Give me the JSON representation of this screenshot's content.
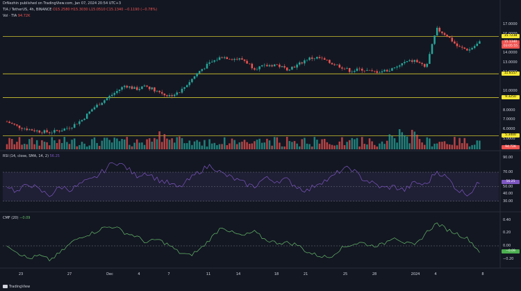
{
  "header": {
    "publisher": "DrNezhin published on TradingView.com, Jan 07, 2024 20:54 UTC+3",
    "symbol": "TIA / TetherUS, 4h, BINANCE",
    "ohlc": "O15.2580 H15.3030 L15.0510 C15.1340 −0.1190 (−0.78%)",
    "volume_label": "Vol · TIA",
    "volume_value": "94.72K",
    "rsi_label": "RSI (14, close, SMA, 14, 2)",
    "rsi_value": "56.25",
    "cmf_label": "CMF (20)",
    "cmf_value": "−0.09"
  },
  "price_axis": {
    "ticks": [
      "17.0000",
      "16.0000",
      "14.0000",
      "13.0000",
      "12.0000",
      "10.0000",
      "8.0000",
      "7.0000",
      "6.0000",
      "5.0000"
    ],
    "tags": [
      {
        "text": "15.7238",
        "bg": "#f5e733",
        "fg": "#000000"
      },
      {
        "text": "15.1340",
        "bg": "#ef5350",
        "fg": "#ffffff"
      },
      {
        "text": "03:05:55",
        "bg": "#ef5350",
        "fg": "#ffffff"
      },
      {
        "text": "11.8157",
        "bg": "#f5e733",
        "fg": "#000000"
      },
      {
        "text": "9.3250",
        "bg": "#f5e733",
        "fg": "#000000"
      },
      {
        "text": "5.3400",
        "bg": "#f5e733",
        "fg": "#000000"
      },
      {
        "text": "94.72K",
        "bg": "#ef5350",
        "fg": "#ffffff"
      }
    ]
  },
  "rsi_axis": {
    "ticks": [
      "90.00",
      "70.00",
      "50.00",
      "40.00",
      "30.00"
    ],
    "value_tag": "56.25"
  },
  "cmf_axis": {
    "ticks": [
      "0.40",
      "0.20",
      "0.00",
      "−0.20"
    ],
    "value_tag": "−0.09"
  },
  "time_axis": [
    "23",
    "27",
    "Dec",
    "4",
    "7",
    "11",
    "14",
    "18",
    "21",
    "25",
    "28",
    "2024",
    "4",
    "8"
  ],
  "footer": {
    "brand": "TradingView"
  },
  "colors": {
    "bull": "#26a69a",
    "bear": "#ef5350",
    "rsi": "#7e57c2",
    "cmf": "#66bb6a",
    "level": "#f5e733"
  },
  "chart_data": [
    {
      "type": "candlestick",
      "title": "TIA / TetherUS, 4h, BINANCE",
      "x_ticks": [
        "23",
        "27",
        "Dec",
        "4",
        "7",
        "11",
        "14",
        "18",
        "21",
        "25",
        "28",
        "2024",
        "4",
        "8"
      ],
      "ylim": [
        5.0,
        17.5
      ],
      "horizontal_levels": [
        15.7238,
        11.8157,
        9.325,
        5.34
      ],
      "last_close": 15.134,
      "close_path": [
        [
          0,
          6.8
        ],
        [
          3,
          6.3
        ],
        [
          6,
          6.0
        ],
        [
          9,
          5.8
        ],
        [
          12,
          5.7
        ],
        [
          15,
          5.9
        ],
        [
          18,
          6.3
        ],
        [
          21,
          7.0
        ],
        [
          24,
          8.2
        ],
        [
          27,
          9.0
        ],
        [
          30,
          9.8
        ],
        [
          33,
          10.6
        ],
        [
          36,
          10.2
        ],
        [
          39,
          10.5
        ],
        [
          42,
          10.0
        ],
        [
          45,
          9.5
        ],
        [
          48,
          9.8
        ],
        [
          51,
          11.0
        ],
        [
          54,
          12.2
        ],
        [
          57,
          13.0
        ],
        [
          60,
          13.6
        ],
        [
          63,
          13.4
        ],
        [
          66,
          13.3
        ],
        [
          69,
          12.4
        ],
        [
          72,
          12.6
        ],
        [
          75,
          12.8
        ],
        [
          78,
          12.3
        ],
        [
          81,
          12.7
        ],
        [
          84,
          13.4
        ],
        [
          87,
          13.5
        ],
        [
          90,
          13.0
        ],
        [
          93,
          12.6
        ],
        [
          96,
          12.1
        ],
        [
          99,
          12.3
        ],
        [
          102,
          12.0
        ],
        [
          105,
          12.1
        ],
        [
          108,
          12.3
        ],
        [
          111,
          13.0
        ],
        [
          114,
          13.2
        ],
        [
          117,
          12.4
        ],
        [
          120,
          16.5
        ],
        [
          123,
          15.8
        ],
        [
          126,
          14.6
        ],
        [
          129,
          14.3
        ],
        [
          132,
          15.1
        ]
      ]
    },
    {
      "type": "bar",
      "title": "Vol · TIA",
      "last_value": "94.72K"
    },
    {
      "type": "line",
      "title": "RSI (14, close, SMA, 14, 2)",
      "ylim": [
        20,
        95
      ],
      "bands": [
        70,
        50,
        30
      ],
      "values": [
        52,
        42,
        55,
        45,
        38,
        50,
        46,
        55,
        60,
        72,
        85,
        78,
        65,
        70,
        60,
        55,
        48,
        60,
        72,
        80,
        68,
        62,
        55,
        50,
        62,
        58,
        60,
        50,
        44,
        56,
        60,
        72,
        76,
        62,
        55,
        48,
        50,
        45,
        56,
        52,
        72,
        62,
        45,
        40,
        56
      ]
    },
    {
      "type": "line",
      "title": "CMF (20)",
      "ylim": [
        -0.3,
        0.45
      ],
      "zero_line": 0,
      "values": [
        0.02,
        -0.1,
        -0.2,
        -0.15,
        -0.22,
        -0.1,
        0.05,
        0.15,
        0.2,
        0.28,
        0.3,
        0.2,
        0.15,
        0.05,
        0.1,
        0.02,
        -0.1,
        -0.15,
        -0.05,
        0.12,
        0.3,
        0.2,
        0.15,
        0.22,
        0.1,
        0.05,
        0.05,
        0.02,
        -0.1,
        -0.15,
        -0.18,
        -0.05,
        0.02,
        0.05,
        0.0,
        0.02,
        0.15,
        0.05,
        0.0,
        0.2,
        0.35,
        0.25,
        0.18,
        0.1,
        -0.09
      ]
    }
  ]
}
